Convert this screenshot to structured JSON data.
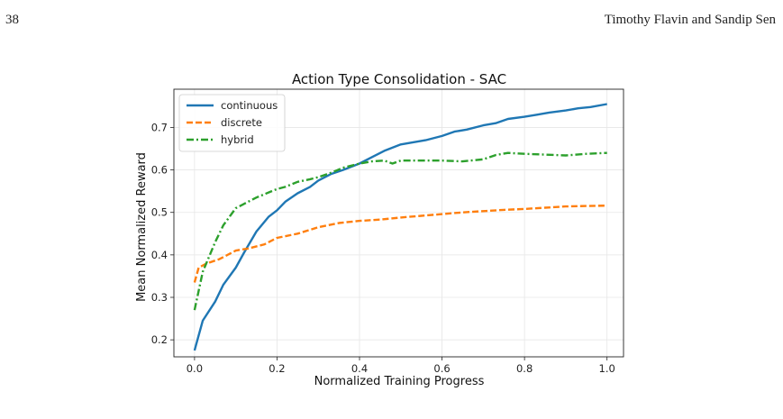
{
  "header": {
    "page_number": "38",
    "authors": "Timothy Flavin and Sandip Sen"
  },
  "chart_data": {
    "type": "line",
    "title": "Action Type Consolidation - SAC",
    "xlabel": "Normalized Training Progress",
    "ylabel": "Mean Normalized Reward",
    "xlim": [
      -0.05,
      1.04
    ],
    "ylim": [
      0.16,
      0.79
    ],
    "xticks": [
      0.0,
      0.2,
      0.4,
      0.6,
      0.8,
      1.0
    ],
    "xtick_labels": [
      "0.0",
      "0.2",
      "0.4",
      "0.6",
      "0.8",
      "1.0"
    ],
    "yticks": [
      0.2,
      0.3,
      0.4,
      0.5,
      0.6,
      0.7
    ],
    "ytick_labels": [
      "0.2",
      "0.3",
      "0.4",
      "0.5",
      "0.6",
      "0.7"
    ],
    "grid": true,
    "legend_position": "top-left",
    "series": [
      {
        "name": "continuous",
        "color": "#1f77b4",
        "dash": "solid",
        "x": [
          0.0,
          0.02,
          0.05,
          0.07,
          0.1,
          0.12,
          0.15,
          0.18,
          0.2,
          0.22,
          0.25,
          0.28,
          0.3,
          0.33,
          0.36,
          0.4,
          0.43,
          0.46,
          0.5,
          0.53,
          0.56,
          0.6,
          0.63,
          0.66,
          0.7,
          0.73,
          0.76,
          0.8,
          0.83,
          0.86,
          0.9,
          0.93,
          0.96,
          1.0
        ],
        "y": [
          0.175,
          0.245,
          0.29,
          0.33,
          0.37,
          0.405,
          0.455,
          0.49,
          0.505,
          0.525,
          0.545,
          0.56,
          0.575,
          0.59,
          0.6,
          0.615,
          0.63,
          0.645,
          0.66,
          0.665,
          0.67,
          0.68,
          0.69,
          0.695,
          0.705,
          0.71,
          0.72,
          0.725,
          0.73,
          0.735,
          0.74,
          0.745,
          0.748,
          0.755
        ]
      },
      {
        "name": "discrete",
        "color": "#ff7f0e",
        "dash": "dashed",
        "x": [
          0.0,
          0.01,
          0.03,
          0.06,
          0.1,
          0.13,
          0.17,
          0.2,
          0.25,
          0.3,
          0.35,
          0.4,
          0.45,
          0.5,
          0.55,
          0.6,
          0.65,
          0.7,
          0.75,
          0.8,
          0.85,
          0.9,
          0.95,
          1.0
        ],
        "y": [
          0.335,
          0.37,
          0.38,
          0.39,
          0.41,
          0.415,
          0.425,
          0.44,
          0.45,
          0.465,
          0.475,
          0.48,
          0.483,
          0.488,
          0.492,
          0.496,
          0.5,
          0.503,
          0.506,
          0.508,
          0.511,
          0.514,
          0.515,
          0.516
        ]
      },
      {
        "name": "hybrid",
        "color": "#2ca02c",
        "dash": "dashdot",
        "x": [
          0.0,
          0.02,
          0.05,
          0.07,
          0.1,
          0.12,
          0.15,
          0.2,
          0.22,
          0.25,
          0.28,
          0.3,
          0.33,
          0.36,
          0.4,
          0.43,
          0.46,
          0.48,
          0.5,
          0.55,
          0.6,
          0.65,
          0.7,
          0.73,
          0.76,
          0.8,
          0.85,
          0.9,
          0.95,
          1.0
        ],
        "y": [
          0.27,
          0.36,
          0.43,
          0.47,
          0.51,
          0.52,
          0.535,
          0.555,
          0.56,
          0.572,
          0.578,
          0.583,
          0.593,
          0.605,
          0.615,
          0.62,
          0.622,
          0.615,
          0.622,
          0.622,
          0.622,
          0.62,
          0.625,
          0.635,
          0.64,
          0.638,
          0.636,
          0.634,
          0.638,
          0.64
        ]
      }
    ]
  }
}
